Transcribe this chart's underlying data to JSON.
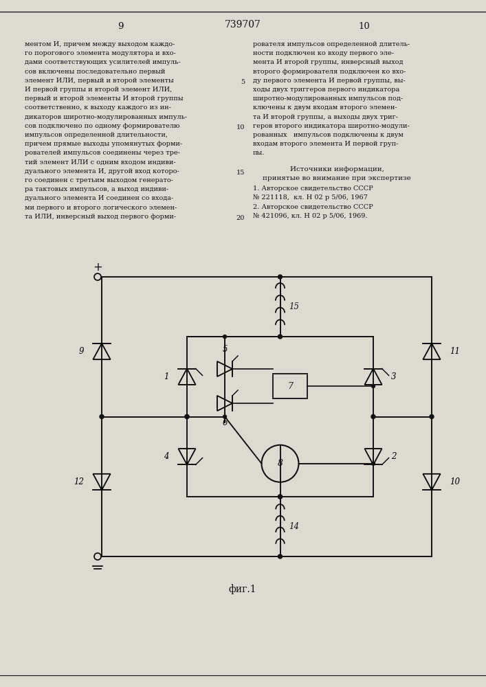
{
  "page_number_left": "9",
  "page_number_right": "10",
  "patent_number": "739707",
  "left_text": [
    "ментом И, причем между выходом каждо-",
    "го порогового элемента модулятора и вхо-",
    "дами соответствующих усилителей импуль-",
    "сов включены последовательно первый",
    "элемент ИЛИ, первый и второй элементы",
    "И первой группы и второй элемент ИЛИ,",
    "первый и второй элементы И второй группы",
    "соответственно, к выходу каждого из ин-",
    "дикаторов широтно-модулированных импуль-",
    "сов подключено по одному формирователю",
    "импульсов определенной длительности,",
    "причем прямые выходы упомянутых форми-",
    "рователей импульсов соединены через тре-",
    "тий элемент ИЛИ с одним входом индиви-",
    "дуального элемента И, другой вход которо-",
    "го соединен с третьим выходом генерато-",
    "ра тактовых импульсов, а выход индиви-",
    "дуального элемента И соединен со входа-",
    "ми первого и второго логического элемен-",
    "та ИЛИ, инверсный выход первого форми-"
  ],
  "right_text": [
    "рователя импульсов определенной длитель-",
    "ности подключен ко входу первого эле-",
    "мента И второй группы, инверсный выход",
    "второго формирователя подключен ко вхо-",
    "ду первого элемента И первой группы, вы-",
    "ходы двух триггеров первого индикатора",
    "широтно-модулированных импульсов под-",
    "ключены к двум входам второго элемен-",
    "та И второй группы, а выходы двух триг-",
    "геров второго индикатора широтно-модули-",
    "рованных   импульсов подключены к двум",
    "входам второго элемента И первой груп-",
    "пы."
  ],
  "sources_title": "Источники информации,",
  "sources_subtitle": "принятые во внимание при экспертизе",
  "source1": "1. Авторское свидетельство СССР",
  "source1b": "№ 221118,  кл. Н 02 р 5/06, 1967",
  "source2": "2. Авторское свидетельство СССР",
  "source2b": "№ 421096, кл. Н 02 р 5/06, 1969.",
  "fig_label": "фиг.1",
  "bg_color": "#dddad2",
  "text_color": "#111111",
  "line_color": "#111111"
}
